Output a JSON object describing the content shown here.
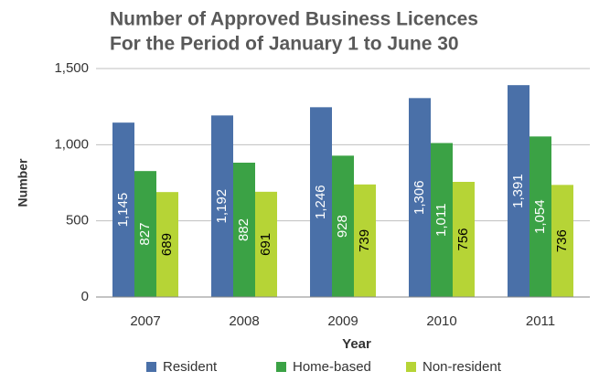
{
  "chart_data": {
    "type": "bar",
    "title": "Number of Approved Business Licences",
    "subtitle": "For the Period of January 1 to June 30",
    "x_label": "Year",
    "y_label": "Number",
    "categories": [
      "2007",
      "2008",
      "2009",
      "2010",
      "2011"
    ],
    "series": [
      {
        "name": "Resident",
        "color": "#4a70a8",
        "values": [
          1145,
          1192,
          1246,
          1306,
          1391
        ],
        "value_labels": [
          "1,145",
          "1,192",
          "1,246",
          "1,306",
          "1,391"
        ]
      },
      {
        "name": "Home-based",
        "color": "#3ba245",
        "values": [
          827,
          882,
          928,
          1011,
          1054
        ],
        "value_labels": [
          "827",
          "882",
          "928",
          "1,011",
          "1,054"
        ]
      },
      {
        "name": "Non-resident",
        "color": "#b6d436",
        "values": [
          689,
          691,
          739,
          756,
          736
        ]
      }
    ],
    "ylim": [
      0,
      1500
    ],
    "yticks": [
      0,
      500,
      {
        "value": 1000,
        "label": "1,000"
      },
      {
        "value": 1500,
        "label": "1,500"
      }
    ],
    "grid": true,
    "legend": "bottom"
  }
}
